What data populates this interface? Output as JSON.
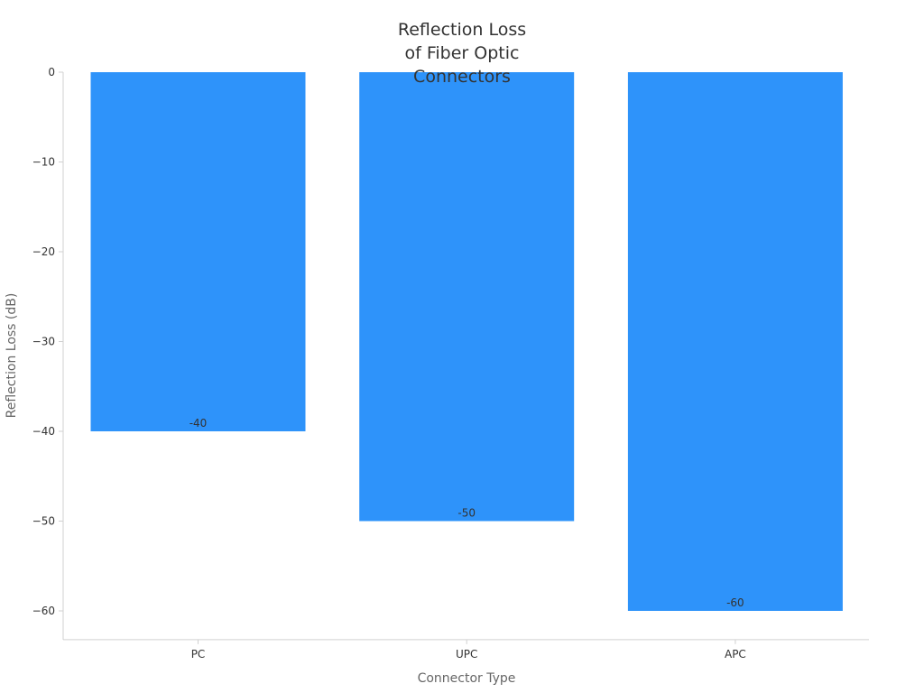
{
  "chart_data": {
    "type": "bar",
    "title": "Reflection Loss\nof Fiber Optic\nConnectors",
    "xlabel": "Connector Type",
    "ylabel": "Reflection Loss (dB)",
    "categories": [
      "PC",
      "UPC",
      "APC"
    ],
    "values": [
      -40,
      -50,
      -60
    ],
    "data_labels": [
      "-40",
      "-50",
      "-60"
    ],
    "ylim": [
      -63.2,
      0
    ],
    "yticks": [
      0,
      -10,
      -20,
      -30,
      -40,
      -50,
      -60
    ],
    "ytick_labels": [
      "0",
      "−10",
      "−20",
      "−30",
      "−40",
      "−50",
      "−60"
    ],
    "bar_color": "#2E93FA",
    "grid": false,
    "legend": "none"
  }
}
